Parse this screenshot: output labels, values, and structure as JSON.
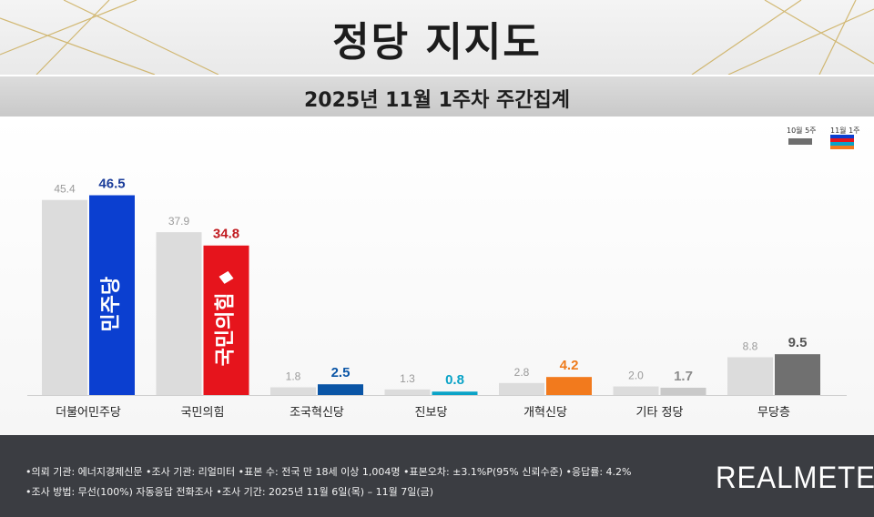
{
  "title": "정당 지지도",
  "subtitle": "2025년 11월 1주차 주간집계",
  "legend": {
    "previous": "10월 5주",
    "current": "11월 1주"
  },
  "colors": {
    "previous_bar": "#dcdcdc",
    "party_colors": [
      "#0b3fd0",
      "#e6141c",
      "#0a55a6",
      "#0aa3c7",
      "#f27a1d",
      "#c9c9c9",
      "#707070"
    ],
    "value_label_colors": [
      "#1b3d9a",
      "#c11a1f",
      "#0a55a6",
      "#0aa3c7",
      "#ee7a1a",
      "#8c8c8c",
      "#555555"
    ],
    "footer_bg": "#3b3d42"
  },
  "chart_data": {
    "type": "bar",
    "categories": [
      "더불어민주당",
      "국민의힘",
      "조국혁신당",
      "진보당",
      "개혁신당",
      "기타 정당",
      "무당층"
    ],
    "series": [
      {
        "name": "10월 5주",
        "values": [
          45.4,
          37.9,
          1.8,
          1.3,
          2.8,
          2.0,
          8.8
        ]
      },
      {
        "name": "11월 1주",
        "values": [
          46.5,
          34.8,
          2.5,
          0.8,
          4.2,
          1.7,
          9.5
        ]
      }
    ],
    "value_labels": {
      "previous": [
        "45.4",
        "37.9",
        "1.8",
        "1.3",
        "2.8",
        "2.0",
        "8.8"
      ],
      "current": [
        "46.5",
        "34.8",
        "2.5",
        "0.8",
        "4.2",
        "1.7",
        "9.5"
      ]
    },
    "in_bar_logos": [
      "민주당",
      "국민의힘"
    ],
    "ylim": [
      0,
      50
    ],
    "grid": false,
    "legend_position": "top-right"
  },
  "footer": {
    "line1": "•의뢰 기관: 에너지경제신문  •조사 기관: 리얼미터 •표본 수: 전국 만 18세 이상 1,004명 •표본오차: ±3.1%P(95% 신뢰수준) •응답률: 4.2%",
    "line2": "•조사 방법: 무선(100%) 자동응답 전화조사 •조사 기간: 2025년 11월 6일(목) – 11월 7일(금)",
    "brand": "REALMETER"
  }
}
